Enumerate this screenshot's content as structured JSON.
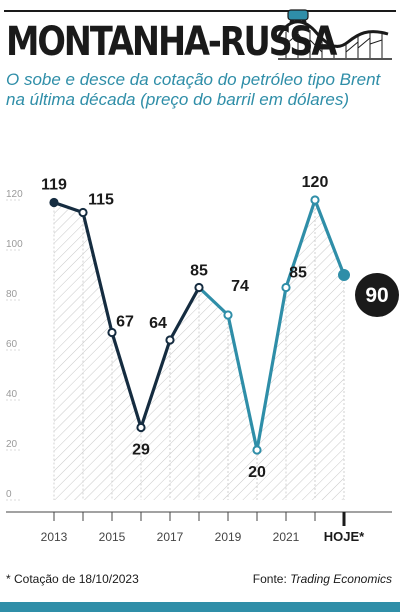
{
  "header": {
    "title": "MONTANHA-RUSSA",
    "subtitle": "O sobe e desce da cotação do petróleo tipo Brent na última década (preço do barril em dólares)"
  },
  "footer": {
    "footnote": "* Cotação de 18/10/2023",
    "source_label": "Fonte:",
    "source_name": "Trading Economics"
  },
  "icons": [
    "roller-coaster-icon"
  ],
  "colors": {
    "dark_line": "#152c40",
    "light_line": "#2f8ea8",
    "text": "#1a1a1a",
    "grid": "#bbbbbb"
  },
  "chart_data": {
    "type": "line",
    "title": "MONTANHA-RUSSA",
    "xlabel": "",
    "ylabel": "",
    "ylim": [
      0,
      120
    ],
    "y_ticks": [
      "0",
      "20",
      "40",
      "60",
      "80",
      "100",
      "120"
    ],
    "x_tick_labels": [
      "2013",
      "2015",
      "2017",
      "2019",
      "2021",
      "HOJE*"
    ],
    "x": [
      "2013",
      "2014",
      "2015",
      "2016",
      "2017",
      "2018",
      "2019",
      "2020",
      "2021",
      "2022",
      "HOJE*"
    ],
    "values": [
      119,
      115,
      67,
      29,
      64,
      85,
      74,
      20,
      85,
      120,
      90
    ],
    "point_labels": [
      "119",
      "115",
      "67",
      "29",
      "64",
      "85",
      "74",
      "20",
      "85",
      "120",
      "90"
    ],
    "grid": false,
    "highlight_last": true
  }
}
